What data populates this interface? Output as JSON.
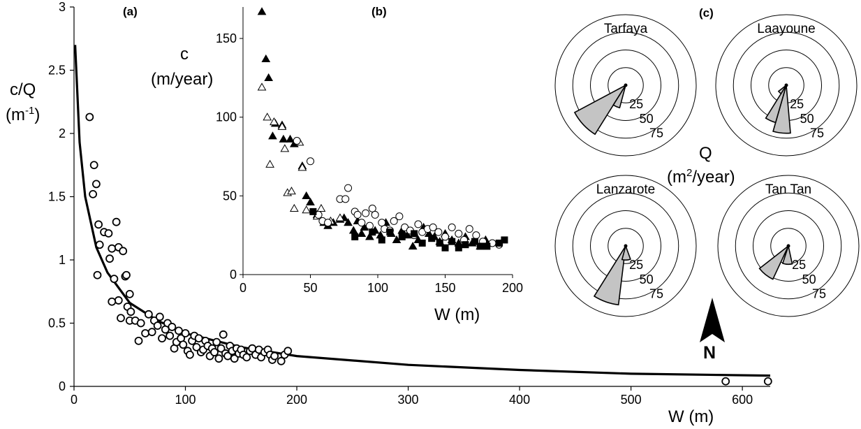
{
  "panel_a": {
    "label": "(a)"
  },
  "panel_b": {
    "label": "(b)"
  },
  "panel_c": {
    "label": "(c)"
  },
  "chart_data": [
    {
      "panel": "(a)",
      "type": "scatter",
      "xlabel": "W (m)",
      "ylabel_main": "c/Q",
      "ylabel_unit": "(m",
      "ylabel_unit_sup": "-1",
      "ylabel_unit_close": ")",
      "xlim": [
        0,
        625
      ],
      "ylim": [
        0,
        3
      ],
      "xticks": [
        "0",
        "100",
        "200",
        "300",
        "400",
        "500",
        "600"
      ],
      "yticks": [
        "0",
        "0.5",
        "1",
        "1.5",
        "2",
        "2.5",
        "3"
      ],
      "grid": false,
      "fit_curve": {
        "shape": "power law y = a·x^-b",
        "points": [
          [
            1.0,
            2.7
          ],
          [
            5,
            1.93
          ],
          [
            10,
            1.5
          ],
          [
            20,
            1.1
          ],
          [
            30,
            0.9
          ],
          [
            50,
            0.66
          ],
          [
            75,
            0.52
          ],
          [
            100,
            0.42
          ],
          [
            150,
            0.31
          ],
          [
            200,
            0.24
          ],
          [
            300,
            0.17
          ],
          [
            400,
            0.13
          ],
          [
            500,
            0.1
          ],
          [
            625,
            0.085
          ]
        ]
      },
      "series": [
        {
          "marker": "open-circle",
          "points": [
            [
              14,
              2.13
            ],
            [
              18,
              1.75
            ],
            [
              20,
              1.6
            ],
            [
              17,
              1.52
            ],
            [
              22,
              1.28
            ],
            [
              23,
              1.12
            ],
            [
              21,
              0.88
            ],
            [
              27,
              1.22
            ],
            [
              31,
              1.21
            ],
            [
              34,
              1.09
            ],
            [
              38,
              1.3
            ],
            [
              40,
              1.1
            ],
            [
              44,
              1.07
            ],
            [
              32,
              1.01
            ],
            [
              36,
              0.85
            ],
            [
              40,
              0.68
            ],
            [
              34,
              0.67
            ],
            [
              42,
              0.54
            ],
            [
              46,
              0.87
            ],
            [
              47,
              0.88
            ],
            [
              50,
              0.73
            ],
            [
              48,
              0.63
            ],
            [
              51,
              0.59
            ],
            [
              50,
              0.52
            ],
            [
              55,
              0.52
            ],
            [
              58,
              0.36
            ],
            [
              60,
              0.5
            ],
            [
              64,
              0.42
            ],
            [
              67,
              0.57
            ],
            [
              70,
              0.43
            ],
            [
              72,
              0.52
            ],
            [
              75,
              0.48
            ],
            [
              77,
              0.55
            ],
            [
              79,
              0.38
            ],
            [
              82,
              0.45
            ],
            [
              84,
              0.5
            ],
            [
              86,
              0.4
            ],
            [
              88,
              0.47
            ],
            [
              90,
              0.3
            ],
            [
              92,
              0.35
            ],
            [
              94,
              0.44
            ],
            [
              96,
              0.38
            ],
            [
              98,
              0.33
            ],
            [
              100,
              0.42
            ],
            [
              102,
              0.28
            ],
            [
              104,
              0.25
            ],
            [
              106,
              0.36
            ],
            [
              108,
              0.4
            ],
            [
              110,
              0.31
            ],
            [
              112,
              0.38
            ],
            [
              114,
              0.27
            ],
            [
              116,
              0.29
            ],
            [
              118,
              0.36
            ],
            [
              120,
              0.32
            ],
            [
              122,
              0.24
            ],
            [
              124,
              0.3
            ],
            [
              126,
              0.27
            ],
            [
              128,
              0.35
            ],
            [
              130,
              0.22
            ],
            [
              132,
              0.3
            ],
            [
              134,
              0.41
            ],
            [
              136,
              0.26
            ],
            [
              138,
              0.24
            ],
            [
              140,
              0.32
            ],
            [
              142,
              0.28
            ],
            [
              144,
              0.22
            ],
            [
              146,
              0.3
            ],
            [
              148,
              0.26
            ],
            [
              150,
              0.29
            ],
            [
              152,
              0.25
            ],
            [
              155,
              0.23
            ],
            [
              158,
              0.28
            ],
            [
              160,
              0.3
            ],
            [
              163,
              0.25
            ],
            [
              166,
              0.29
            ],
            [
              168,
              0.23
            ],
            [
              171,
              0.27
            ],
            [
              174,
              0.29
            ],
            [
              176,
              0.25
            ],
            [
              178,
              0.21
            ],
            [
              180,
              0.24
            ],
            [
              186,
              0.2
            ],
            [
              189,
              0.25
            ],
            [
              192,
              0.28
            ],
            [
              585,
              0.04
            ],
            [
              623,
              0.04
            ]
          ]
        }
      ]
    },
    {
      "panel": "(b)",
      "type": "scatter",
      "xlabel": "W (m)",
      "ylabel_main": "c",
      "ylabel_unit": "(m/year)",
      "xlim": [
        0,
        200
      ],
      "ylim": [
        0,
        170
      ],
      "xticks": [
        "0",
        "50",
        "100",
        "150",
        "200"
      ],
      "yticks": [
        "0",
        "50",
        "100",
        "150"
      ],
      "grid": false,
      "series": [
        {
          "marker": "filled-triangle",
          "points": [
            [
              14,
              167
            ],
            [
              17,
              137
            ],
            [
              19,
              125
            ],
            [
              22,
              88
            ],
            [
              24,
              96
            ],
            [
              29,
              95
            ],
            [
              30,
              86
            ],
            [
              35,
              86
            ],
            [
              38,
              83
            ],
            [
              44,
              69
            ],
            [
              47,
              50
            ],
            [
              50,
              46
            ],
            [
              55,
              38
            ],
            [
              60,
              33
            ],
            [
              63,
              31
            ],
            [
              67,
              33
            ],
            [
              72,
              35
            ],
            [
              75,
              36
            ],
            [
              78,
              33
            ],
            [
              82,
              28
            ],
            [
              85,
              34
            ],
            [
              88,
              26
            ],
            [
              90,
              30
            ],
            [
              94,
              24
            ],
            [
              98,
              28
            ],
            [
              102,
              25
            ],
            [
              106,
              33
            ],
            [
              110,
              26
            ],
            [
              114,
              22
            ],
            [
              118,
              28
            ],
            [
              122,
              25
            ],
            [
              126,
              18
            ],
            [
              130,
              22
            ],
            [
              134,
              30
            ],
            [
              138,
              26
            ],
            [
              142,
              24
            ],
            [
              146,
              21
            ],
            [
              150,
              26
            ],
            [
              155,
              22
            ],
            [
              160,
              20
            ],
            [
              165,
              24
            ],
            [
              170,
              20
            ],
            [
              176,
              18
            ],
            [
              180,
              22
            ]
          ]
        },
        {
          "marker": "open-triangle",
          "points": [
            [
              14,
              119
            ],
            [
              18,
              100
            ],
            [
              20,
              70
            ],
            [
              23,
              97
            ],
            [
              29,
              94
            ],
            [
              31,
              80
            ],
            [
              33,
              52
            ],
            [
              36,
              53
            ],
            [
              38,
              42
            ],
            [
              42,
              84
            ],
            [
              44,
              68
            ],
            [
              47,
              41
            ],
            [
              55,
              37
            ],
            [
              58,
              42
            ],
            [
              65,
              34
            ],
            [
              72,
              36
            ]
          ]
        },
        {
          "marker": "open-circle",
          "points": [
            [
              40,
              85
            ],
            [
              50,
              72
            ],
            [
              56,
              38
            ],
            [
              59,
              34
            ],
            [
              63,
              33
            ],
            [
              72,
              48
            ],
            [
              76,
              48
            ],
            [
              78,
              55
            ],
            [
              83,
              40
            ],
            [
              85,
              38
            ],
            [
              88,
              33
            ],
            [
              91,
              39
            ],
            [
              94,
              31
            ],
            [
              96,
              42
            ],
            [
              98,
              38
            ],
            [
              103,
              33
            ],
            [
              105,
              29
            ],
            [
              109,
              28
            ],
            [
              112,
              34
            ],
            [
              116,
              37
            ],
            [
              120,
              30
            ],
            [
              124,
              28
            ],
            [
              127,
              25
            ],
            [
              130,
              32
            ],
            [
              133,
              27
            ],
            [
              137,
              29
            ],
            [
              141,
              30
            ],
            [
              145,
              27
            ],
            [
              150,
              24
            ],
            [
              155,
              30
            ],
            [
              160,
              26
            ],
            [
              164,
              22
            ],
            [
              168,
              29
            ],
            [
              173,
              25
            ],
            [
              178,
              21
            ],
            [
              185,
              20
            ],
            [
              190,
              19
            ]
          ]
        },
        {
          "marker": "filled-square",
          "points": [
            [
              52,
              40
            ],
            [
              83,
              24
            ],
            [
              96,
              27
            ],
            [
              103,
              22
            ],
            [
              109,
              27
            ],
            [
              118,
              24
            ],
            [
              127,
              26
            ],
            [
              133,
              20
            ],
            [
              140,
              23
            ],
            [
              146,
              20
            ],
            [
              150,
              17
            ],
            [
              155,
              21
            ],
            [
              160,
              17
            ],
            [
              165,
              19
            ],
            [
              172,
              21
            ],
            [
              176,
              18
            ],
            [
              181,
              18
            ],
            [
              190,
              20
            ],
            [
              194,
              22
            ]
          ]
        }
      ]
    },
    {
      "panel": "(c)",
      "type": "rose",
      "qlabel": "Q",
      "qunit_pre": "(m",
      "qunit_sup": "2",
      "qunit_post": "/year)",
      "ring_values": [
        25,
        50,
        75
      ],
      "ring_labels": [
        "25",
        "50",
        "75"
      ],
      "north_label": "N",
      "roses": [
        {
          "name": "Tarfaya",
          "petals": [
            {
              "from": 212,
              "to": 242,
              "value": 82
            },
            {
              "from": 195,
              "to": 212,
              "value": 33
            }
          ]
        },
        {
          "name": "Laayoune",
          "petals": [
            {
              "from": 175,
              "to": 196,
              "value": 68
            },
            {
              "from": 196,
              "to": 212,
              "value": 55
            },
            {
              "from": 212,
              "to": 232,
              "value": 14
            }
          ]
        },
        {
          "name": "Lanzarote",
          "petals": [
            {
              "from": 187,
              "to": 212,
              "value": 84
            },
            {
              "from": 160,
              "to": 195,
              "value": 20
            }
          ]
        },
        {
          "name": "Tan Tan",
          "petals": [
            {
              "from": 205,
              "to": 232,
              "value": 52
            },
            {
              "from": 168,
              "to": 198,
              "value": 26
            }
          ]
        }
      ]
    }
  ]
}
